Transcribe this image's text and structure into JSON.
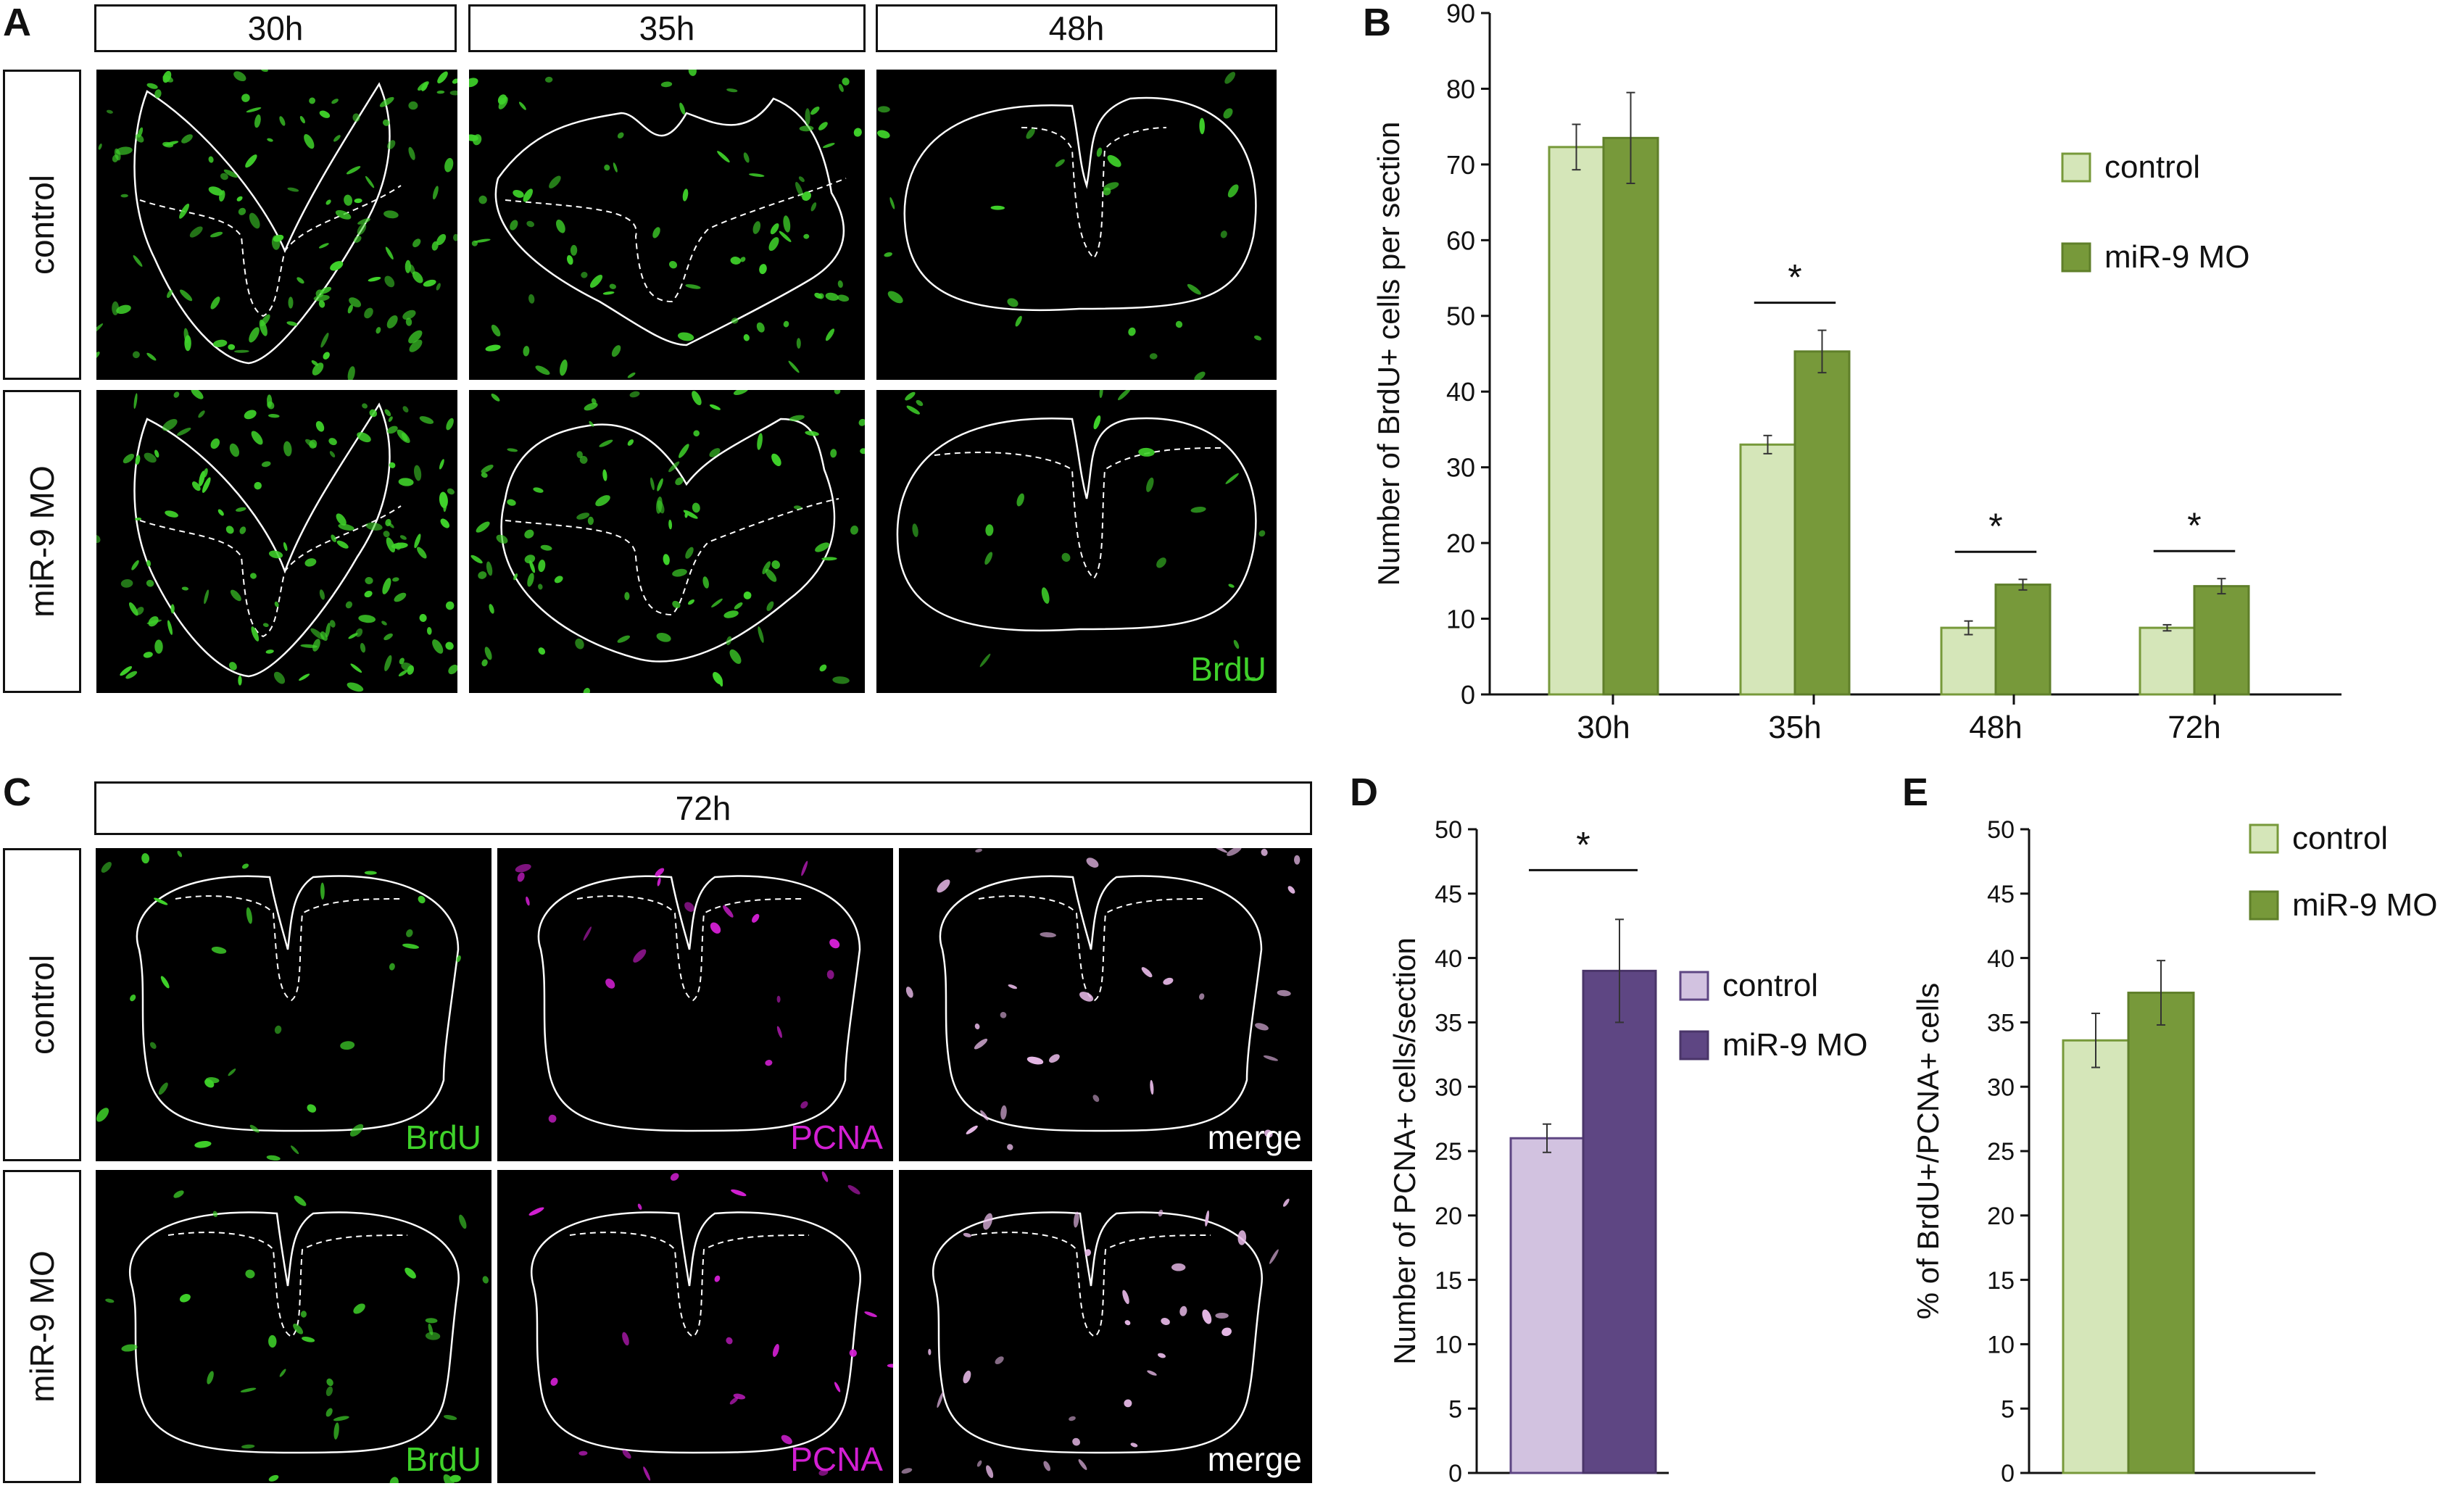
{
  "panel_letters": {
    "A": "A",
    "B": "B",
    "C": "C",
    "D": "D",
    "E": "E"
  },
  "panel_a": {
    "column_headers": [
      "30h",
      "35h",
      "48h"
    ],
    "row_labels": [
      "control",
      "miR-9 MO"
    ],
    "stain_label": "BrdU",
    "stain_color": "#3fd22a"
  },
  "panel_c": {
    "header": "72h",
    "row_labels": [
      "control",
      "miR-9 MO"
    ],
    "channel_labels": [
      "BrdU",
      "PCNA",
      "merge"
    ],
    "channel_colors": {
      "BrdU": "#3fd22a",
      "PCNA": "#d21fd2",
      "merge": "#ffffff"
    }
  },
  "colors": {
    "control_green": "#d5e6b9",
    "mo_green": "#77993a",
    "control_purple": "#d2c2e0",
    "mo_purple": "#5e4683",
    "axis": "#111111"
  },
  "chart_data": [
    {
      "id": "B",
      "type": "bar",
      "categories": [
        "30h",
        "35h",
        "48h",
        "72h"
      ],
      "series": [
        {
          "name": "control",
          "values": [
            72.3,
            33.0,
            8.8,
            8.8
          ],
          "errors": [
            3.0,
            1.2,
            0.9,
            0.4
          ]
        },
        {
          "name": "miR-9 MO",
          "values": [
            73.5,
            45.3,
            14.5,
            14.3
          ],
          "errors": [
            6.0,
            2.8,
            0.7,
            1.0
          ]
        }
      ],
      "ylabel": "Number of BrdU+ cells per section",
      "xlabel": "",
      "ylim": [
        0,
        90
      ],
      "yticks": [
        0,
        10,
        20,
        30,
        40,
        50,
        60,
        70,
        80,
        90
      ],
      "significance": [
        "",
        "*",
        "*",
        "*"
      ],
      "legend": "top-right"
    },
    {
      "id": "D",
      "type": "bar",
      "categories": [
        ""
      ],
      "series": [
        {
          "name": "control",
          "values": [
            26.0
          ],
          "errors": [
            1.1
          ]
        },
        {
          "name": "miR-9 MO",
          "values": [
            39.0
          ],
          "errors": [
            4.0
          ]
        }
      ],
      "ylabel": "Number of PCNA+ cells/section",
      "xlabel": "",
      "ylim": [
        0,
        50
      ],
      "yticks": [
        0,
        5,
        10,
        15,
        20,
        25,
        30,
        35,
        40,
        45,
        50
      ],
      "significance": [
        "*"
      ],
      "legend": "right"
    },
    {
      "id": "E",
      "type": "bar",
      "categories": [
        ""
      ],
      "series": [
        {
          "name": "control",
          "values": [
            33.6
          ],
          "errors": [
            2.1
          ]
        },
        {
          "name": "miR-9 MO",
          "values": [
            37.3
          ],
          "errors": [
            2.5
          ]
        }
      ],
      "ylabel": "% of BrdU+/PCNA+ cells",
      "xlabel": "",
      "ylim": [
        0,
        50
      ],
      "yticks": [
        0,
        5,
        10,
        15,
        20,
        25,
        30,
        35,
        40,
        45,
        50
      ],
      "significance": [
        ""
      ],
      "legend": "top-right"
    }
  ]
}
